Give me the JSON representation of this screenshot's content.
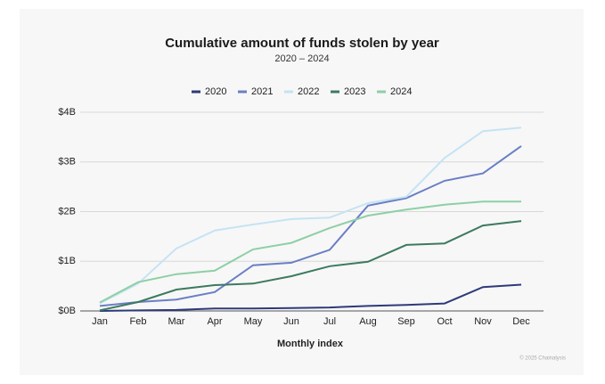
{
  "chart_data": {
    "type": "line",
    "title": "Cumulative amount of funds stolen by year",
    "subtitle": "2020 – 2024",
    "x_label": "Monthly index",
    "footer": "© 2025 Chainalysis",
    "categories": [
      "Jan",
      "Feb",
      "Mar",
      "Apr",
      "May",
      "Jun",
      "Jul",
      "Aug",
      "Sep",
      "Oct",
      "Nov",
      "Dec"
    ],
    "series": [
      {
        "name": "2020",
        "color": "#2e3a7a",
        "values": [
          0,
          0.01,
          0.02,
          0.05,
          0.05,
          0.06,
          0.07,
          0.1,
          0.12,
          0.15,
          0.48,
          0.53
        ]
      },
      {
        "name": "2021",
        "color": "#6a7fc4",
        "values": [
          0.1,
          0.18,
          0.23,
          0.38,
          0.92,
          0.97,
          1.23,
          2.12,
          2.27,
          2.62,
          2.77,
          3.32
        ]
      },
      {
        "name": "2022",
        "color": "#c5e3f3",
        "values": [
          0.15,
          0.55,
          1.26,
          1.62,
          1.74,
          1.85,
          1.88,
          2.17,
          2.3,
          3.08,
          3.62,
          3.69
        ]
      },
      {
        "name": "2023",
        "color": "#3d7a5f",
        "values": [
          0.01,
          0.18,
          0.43,
          0.52,
          0.55,
          0.7,
          0.9,
          0.99,
          1.33,
          1.36,
          1.72,
          1.81
        ]
      },
      {
        "name": "2024",
        "color": "#8ecfa6",
        "values": [
          0.17,
          0.58,
          0.74,
          0.81,
          1.24,
          1.37,
          1.67,
          1.92,
          2.04,
          2.14,
          2.2,
          2.2
        ]
      }
    ],
    "ylim": [
      0,
      4
    ],
    "yticks": [
      {
        "value": 0,
        "label": "$0B"
      },
      {
        "value": 1,
        "label": "$1B"
      },
      {
        "value": 2,
        "label": "$2B"
      },
      {
        "value": 3,
        "label": "$3B"
      },
      {
        "value": 4,
        "label": "$4B"
      }
    ],
    "grid": true,
    "legend": "top"
  }
}
